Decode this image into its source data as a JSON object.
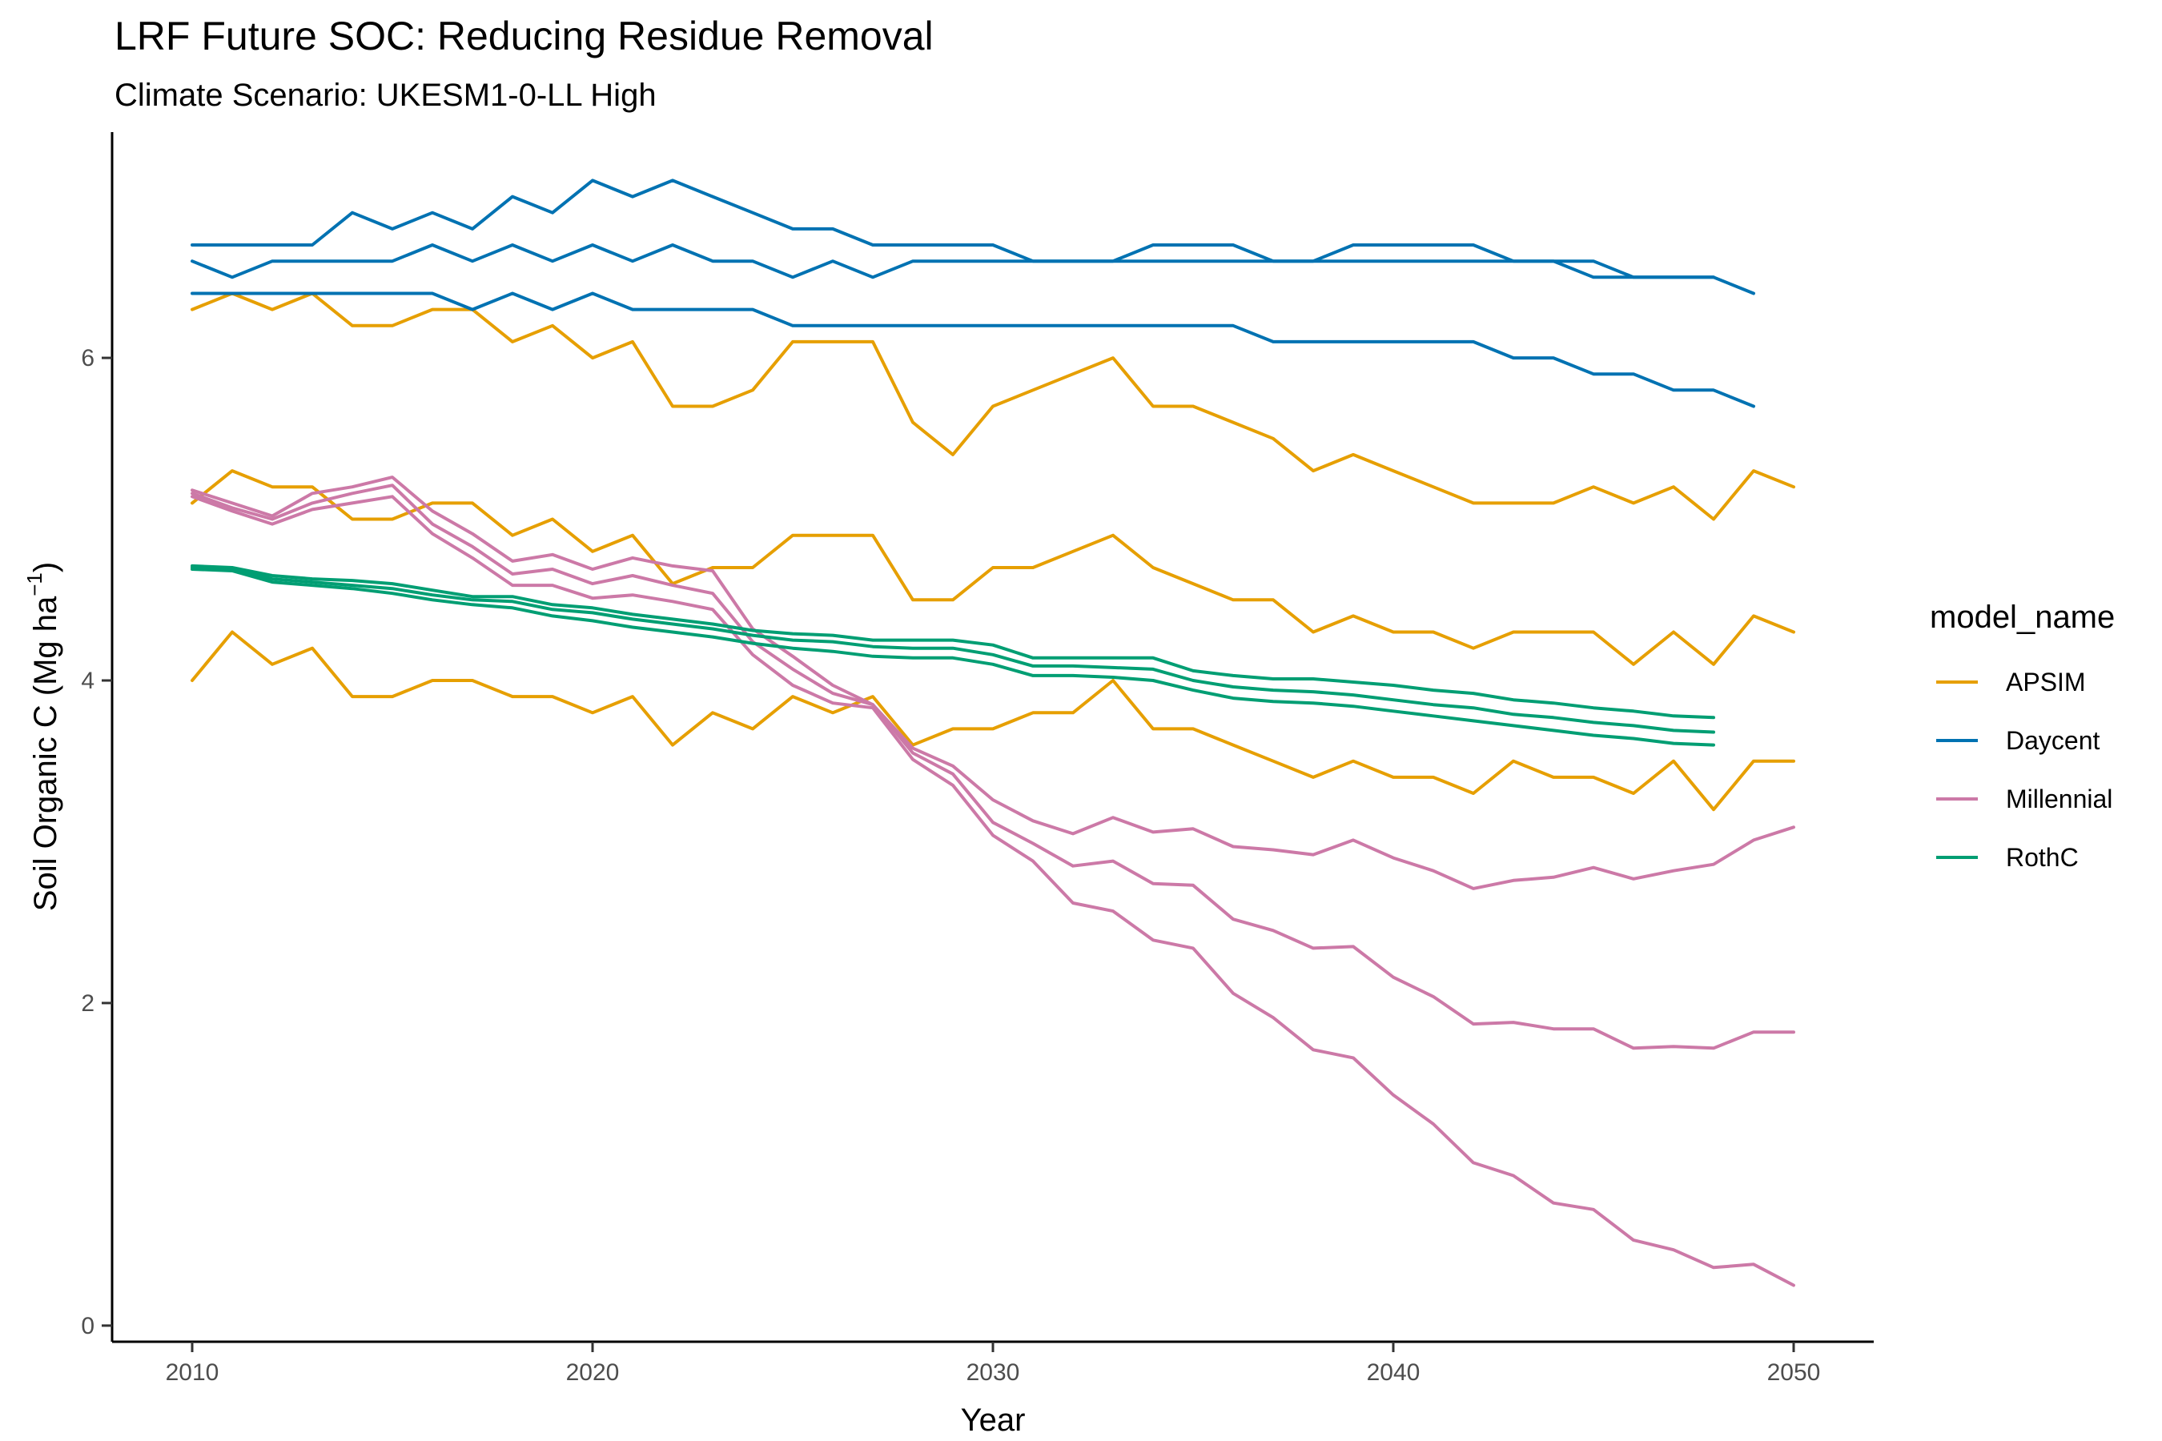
{
  "chart_data": {
    "type": "line",
    "title": "LRF  Future SOC: Reducing Residue Removal",
    "subtitle": "Climate Scenario: UKESM1-0-LL High",
    "xlabel": "Year",
    "ylabel_main": "Soil Organic C (Mg ha",
    "ylabel_sup": "−1",
    "ylabel_end": ")",
    "xlim": [
      2008,
      2052
    ],
    "ylim": [
      -0.1,
      7.4
    ],
    "xticks": [
      2010,
      2020,
      2030,
      2040,
      2050
    ],
    "yticks": [
      0,
      2,
      4,
      6
    ],
    "legend": {
      "title": "model_name",
      "position": "right"
    },
    "series": [
      {
        "name": "APSIM",
        "color": "#E69F00",
        "x_start": 2010,
        "values": [
          6.3,
          6.4,
          6.3,
          6.4,
          6.2,
          6.2,
          6.3,
          6.3,
          6.1,
          6.2,
          6.0,
          6.1,
          5.7,
          5.7,
          5.8,
          6.1,
          6.1,
          6.1,
          5.6,
          5.4,
          5.7,
          5.8,
          5.9,
          6.0,
          5.7,
          5.7,
          5.6,
          5.5,
          5.3,
          5.4,
          5.3,
          5.2,
          5.1,
          5.1,
          5.1,
          5.2,
          5.1,
          5.2,
          5.0,
          5.3,
          5.2
        ]
      },
      {
        "name": "APSIM",
        "color": "#E69F00",
        "x_start": 2010,
        "values": [
          5.1,
          5.3,
          5.2,
          5.2,
          5.0,
          5.0,
          5.1,
          5.1,
          4.9,
          5.0,
          4.8,
          4.9,
          4.6,
          4.7,
          4.7,
          4.9,
          4.9,
          4.9,
          4.5,
          4.5,
          4.7,
          4.7,
          4.8,
          4.9,
          4.7,
          4.6,
          4.5,
          4.5,
          4.3,
          4.4,
          4.3,
          4.3,
          4.2,
          4.3,
          4.3,
          4.3,
          4.1,
          4.3,
          4.1,
          4.4,
          4.3
        ]
      },
      {
        "name": "APSIM",
        "color": "#E69F00",
        "x_start": 2010,
        "values": [
          4.0,
          4.3,
          4.1,
          4.2,
          3.9,
          3.9,
          4.0,
          4.0,
          3.9,
          3.9,
          3.8,
          3.9,
          3.6,
          3.8,
          3.7,
          3.9,
          3.8,
          3.9,
          3.6,
          3.7,
          3.7,
          3.8,
          3.8,
          4.0,
          3.7,
          3.7,
          3.6,
          3.5,
          3.4,
          3.5,
          3.4,
          3.4,
          3.3,
          3.5,
          3.4,
          3.4,
          3.3,
          3.5,
          3.2,
          3.5,
          3.5
        ]
      },
      {
        "name": "Daycent",
        "color": "#0072B2",
        "x_start": 2010,
        "values": [
          6.7,
          6.7,
          6.7,
          6.7,
          6.9,
          6.8,
          6.9,
          6.8,
          7.0,
          6.9,
          7.1,
          7.0,
          7.1,
          7.0,
          6.9,
          6.8,
          6.8,
          6.7,
          6.7,
          6.7,
          6.7,
          6.6,
          6.6,
          6.6,
          6.7,
          6.7,
          6.7,
          6.6,
          6.6,
          6.7,
          6.7,
          6.7,
          6.7,
          6.6,
          6.6,
          6.6,
          6.5,
          6.5,
          6.5,
          6.4
        ]
      },
      {
        "name": "Daycent",
        "color": "#0072B2",
        "x_start": 2010,
        "values": [
          6.6,
          6.5,
          6.6,
          6.6,
          6.6,
          6.6,
          6.7,
          6.6,
          6.7,
          6.6,
          6.7,
          6.6,
          6.7,
          6.6,
          6.6,
          6.5,
          6.6,
          6.5,
          6.6,
          6.6,
          6.6,
          6.6,
          6.6,
          6.6,
          6.6,
          6.6,
          6.6,
          6.6,
          6.6,
          6.6,
          6.6,
          6.6,
          6.6,
          6.6,
          6.6,
          6.5,
          6.5,
          6.5,
          6.5
        ]
      },
      {
        "name": "Daycent",
        "color": "#0072B2",
        "x_start": 2010,
        "values": [
          6.4,
          6.4,
          6.4,
          6.4,
          6.4,
          6.4,
          6.4,
          6.3,
          6.4,
          6.3,
          6.4,
          6.3,
          6.3,
          6.3,
          6.3,
          6.2,
          6.2,
          6.2,
          6.2,
          6.2,
          6.2,
          6.2,
          6.2,
          6.2,
          6.2,
          6.2,
          6.2,
          6.1,
          6.1,
          6.1,
          6.1,
          6.1,
          6.1,
          6.0,
          6.0,
          5.9,
          5.9,
          5.8,
          5.8,
          5.7
        ]
      },
      {
        "name": "Millennial",
        "color": "#CC79A7",
        "x_start": 2010,
        "values": [
          5.18,
          5.1,
          5.02,
          5.16,
          5.2,
          5.26,
          5.05,
          4.91,
          4.74,
          4.78,
          4.69,
          4.76,
          4.71,
          4.68,
          4.32,
          4.15,
          3.97,
          3.85,
          3.58,
          3.47,
          3.26,
          3.13,
          3.05,
          3.15,
          3.06,
          3.08,
          2.97,
          2.95,
          2.92,
          3.01,
          2.9,
          2.82,
          2.71,
          2.76,
          2.78,
          2.84,
          2.77,
          2.82,
          2.86,
          3.01,
          3.09
        ]
      },
      {
        "name": "Millennial",
        "color": "#CC79A7",
        "x_start": 2010,
        "values": [
          5.16,
          5.07,
          5.0,
          5.1,
          5.16,
          5.21,
          4.97,
          4.83,
          4.66,
          4.69,
          4.6,
          4.65,
          4.59,
          4.54,
          4.24,
          4.07,
          3.92,
          3.85,
          3.55,
          3.42,
          3.12,
          2.99,
          2.85,
          2.88,
          2.74,
          2.73,
          2.52,
          2.45,
          2.34,
          2.35,
          2.16,
          2.04,
          1.87,
          1.88,
          1.84,
          1.84,
          1.72,
          1.73,
          1.72,
          1.82,
          1.82
        ]
      },
      {
        "name": "Millennial",
        "color": "#CC79A7",
        "x_start": 2010,
        "values": [
          5.14,
          5.05,
          4.97,
          5.06,
          5.1,
          5.14,
          4.91,
          4.76,
          4.59,
          4.59,
          4.51,
          4.53,
          4.49,
          4.44,
          4.16,
          3.97,
          3.86,
          3.83,
          3.51,
          3.35,
          3.04,
          2.88,
          2.62,
          2.57,
          2.39,
          2.34,
          2.06,
          1.91,
          1.71,
          1.66,
          1.43,
          1.25,
          1.01,
          0.93,
          0.76,
          0.72,
          0.53,
          0.47,
          0.36,
          0.38,
          0.25
        ]
      },
      {
        "name": "RothC",
        "color": "#009E73",
        "x_start": 2010,
        "values": [
          4.71,
          4.7,
          4.65,
          4.63,
          4.62,
          4.6,
          4.56,
          4.52,
          4.52,
          4.47,
          4.45,
          4.41,
          4.38,
          4.35,
          4.31,
          4.29,
          4.28,
          4.25,
          4.25,
          4.25,
          4.22,
          4.14,
          4.14,
          4.14,
          4.14,
          4.06,
          4.03,
          4.01,
          4.01,
          3.99,
          3.97,
          3.94,
          3.92,
          3.88,
          3.86,
          3.83,
          3.81,
          3.78,
          3.77
        ]
      },
      {
        "name": "RothC",
        "color": "#009E73",
        "x_start": 2010,
        "values": [
          4.7,
          4.69,
          4.63,
          4.61,
          4.59,
          4.57,
          4.53,
          4.5,
          4.49,
          4.44,
          4.42,
          4.38,
          4.35,
          4.32,
          4.28,
          4.25,
          4.24,
          4.21,
          4.2,
          4.2,
          4.16,
          4.09,
          4.09,
          4.08,
          4.07,
          4.0,
          3.96,
          3.94,
          3.93,
          3.91,
          3.88,
          3.85,
          3.83,
          3.79,
          3.77,
          3.74,
          3.72,
          3.69,
          3.68
        ]
      },
      {
        "name": "RothC",
        "color": "#009E73",
        "x_start": 2010,
        "values": [
          4.69,
          4.68,
          4.61,
          4.59,
          4.57,
          4.54,
          4.5,
          4.47,
          4.45,
          4.4,
          4.37,
          4.33,
          4.3,
          4.27,
          4.23,
          4.2,
          4.18,
          4.15,
          4.14,
          4.14,
          4.1,
          4.03,
          4.03,
          4.02,
          4.0,
          3.94,
          3.89,
          3.87,
          3.86,
          3.84,
          3.81,
          3.78,
          3.75,
          3.72,
          3.69,
          3.66,
          3.64,
          3.61,
          3.6
        ]
      }
    ],
    "legend_entries": [
      {
        "label": "APSIM",
        "color": "#E69F00"
      },
      {
        "label": "Daycent",
        "color": "#0072B2"
      },
      {
        "label": "Millennial",
        "color": "#CC79A7"
      },
      {
        "label": "RothC",
        "color": "#009E73"
      }
    ]
  }
}
